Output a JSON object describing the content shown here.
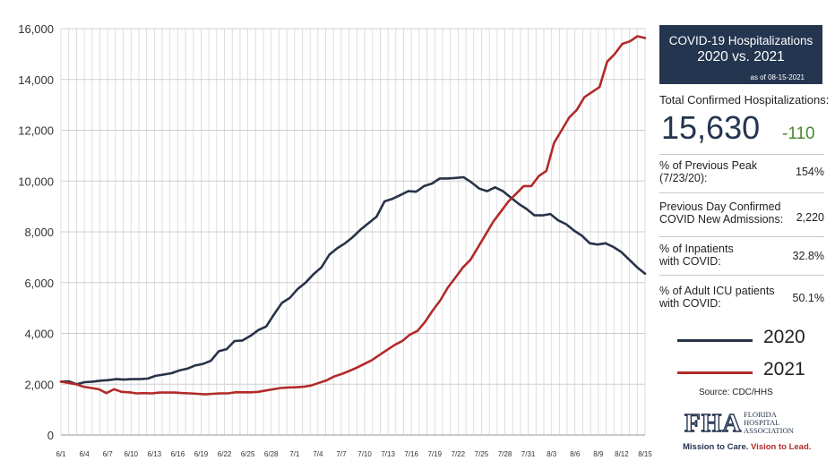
{
  "chart_data": {
    "type": "line",
    "ylim": [
      0,
      16000
    ],
    "yticks": [
      0,
      2000,
      4000,
      6000,
      8000,
      10000,
      12000,
      14000,
      16000
    ],
    "ytick_labels": [
      "0",
      "2,000",
      "4,000",
      "6,000",
      "8,000",
      "10,000",
      "12,000",
      "14,000",
      "16,000"
    ],
    "x_ticks": [
      "6/1",
      "6/4",
      "6/7",
      "6/10",
      "6/13",
      "6/16",
      "6/19",
      "6/22",
      "6/25",
      "6/28",
      "7/1",
      "7/4",
      "7/7",
      "7/10",
      "7/13",
      "7/16",
      "7/19",
      "7/22",
      "7/25",
      "7/28",
      "7/31",
      "8/3",
      "8/6",
      "8/9",
      "8/12",
      "8/15"
    ],
    "grid": true,
    "series": [
      {
        "name": "2020",
        "color": "#283348",
        "values": [
          2100,
          2110,
          2000,
          2080,
          2100,
          2140,
          2160,
          2200,
          2180,
          2200,
          2200,
          2220,
          2330,
          2380,
          2430,
          2540,
          2610,
          2740,
          2800,
          2920,
          3300,
          3380,
          3700,
          3720,
          3900,
          4130,
          4270,
          4750,
          5200,
          5400,
          5750,
          6000,
          6330,
          6600,
          7100,
          7350,
          7550,
          7800,
          8100,
          8350,
          8600,
          9200,
          9300,
          9450,
          9600,
          9580,
          9800,
          9900,
          10100,
          10100,
          10120,
          10150,
          9950,
          9700,
          9600,
          9750,
          9600,
          9350,
          9100,
          8900,
          8650,
          8650,
          8700,
          8450,
          8300,
          8050,
          7850,
          7550,
          7500,
          7550,
          7400,
          7200,
          6900,
          6600,
          6350
        ]
      },
      {
        "name": "2021",
        "color": "#b22a2a",
        "values": [
          2100,
          2050,
          2000,
          1900,
          1850,
          1800,
          1650,
          1800,
          1700,
          1680,
          1640,
          1650,
          1640,
          1670,
          1670,
          1670,
          1650,
          1640,
          1620,
          1600,
          1620,
          1640,
          1640,
          1680,
          1680,
          1680,
          1700,
          1750,
          1800,
          1850,
          1870,
          1880,
          1900,
          1950,
          2050,
          2150,
          2300,
          2400,
          2520,
          2650,
          2800,
          2950,
          3150,
          3350,
          3550,
          3700,
          3950,
          4100,
          4450,
          4900,
          5300,
          5800,
          6200,
          6600,
          6900,
          7400,
          7900,
          8400,
          8800,
          9200,
          9500,
          9800,
          9800,
          10200,
          10400,
          11500,
          12000,
          12500,
          12800,
          13300,
          13500,
          13700,
          14700,
          15000,
          15400,
          15500,
          15700,
          15630
        ]
      }
    ]
  },
  "panel": {
    "title_line1": "COVID-19 Hospitalizations",
    "title_line2": "2020 vs. 2021",
    "as_of": "as of 08-15-2021",
    "total_label": "Total Confirmed Hospitalizations:",
    "total_value": "15,630",
    "total_change": "-110",
    "stats": [
      {
        "label1": "% of Previous Peak",
        "label2": "(7/23/20):",
        "value": "154%"
      },
      {
        "label1": "Previous Day Confirmed",
        "label2": "COVID New Admissions:",
        "value": "2,220"
      },
      {
        "label1": "% of Inpatients",
        "label2": "with COVID:",
        "value": "32.8%"
      },
      {
        "label1": "% of Adult ICU patients",
        "label2": "with COVID:",
        "value": "50.1%"
      }
    ],
    "legend": [
      {
        "name": "2020",
        "color": "#283348"
      },
      {
        "name": "2021",
        "color": "#b22a2a"
      }
    ],
    "source": "Source: CDC/HHS",
    "logo_letters": "FHA",
    "logo_org_line1": "FLORIDA",
    "logo_org_line2": "HOSPITAL",
    "logo_org_line3": "ASSOCIATION",
    "mission_part1": "Mission to Care.",
    "mission_part2": "Vision to Lead."
  }
}
